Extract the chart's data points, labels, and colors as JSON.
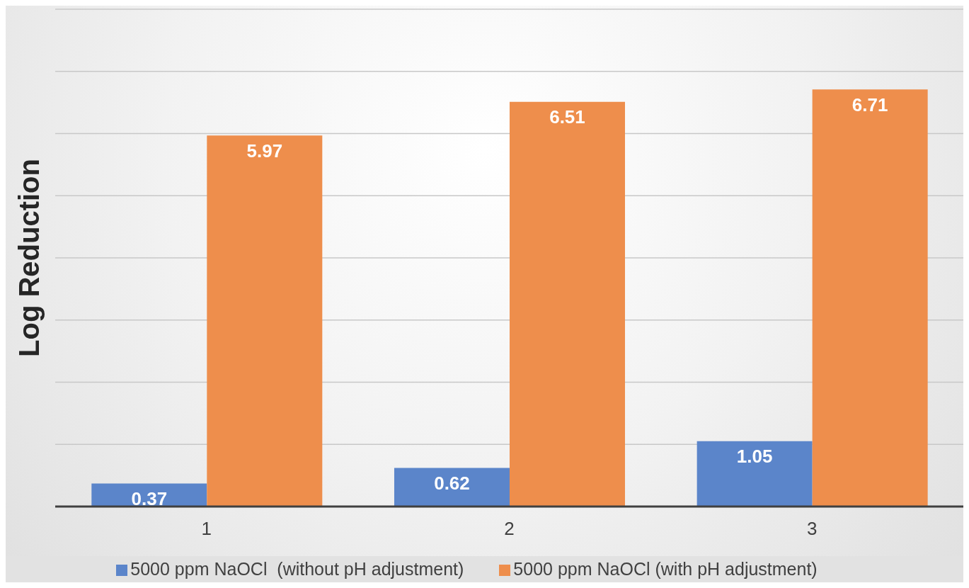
{
  "chart_data": {
    "type": "bar",
    "ylabel": "Log Reduction",
    "categories": [
      "1",
      "2",
      "3"
    ],
    "series": [
      {
        "name": "5000 ppm NaOCl  (without pH adjustment)",
        "color": "#5b85ca",
        "values": [
          0.37,
          0.62,
          1.05
        ]
      },
      {
        "name": "5000 ppm NaOCl (with pH adjustment)",
        "color": "#ee8e4c",
        "values": [
          5.97,
          6.51,
          6.71
        ]
      }
    ],
    "ylim": [
      0,
      8
    ],
    "tick_labels": "x",
    "grid": "y",
    "legend": "bottom",
    "data_labels": true
  }
}
